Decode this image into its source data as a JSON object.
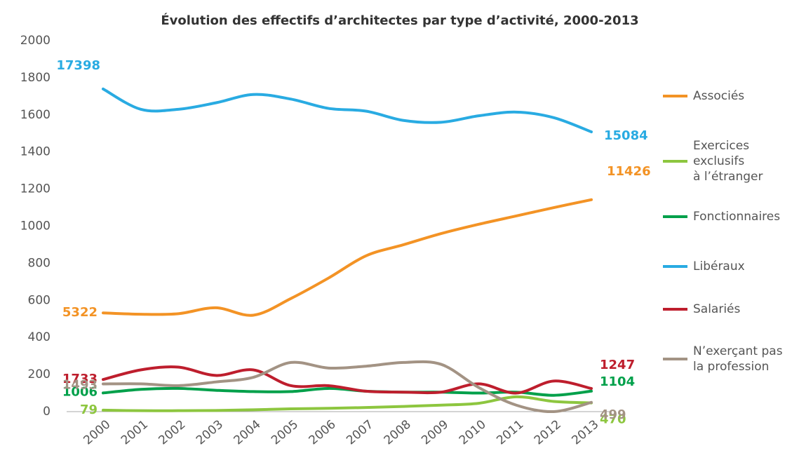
{
  "chart_data": {
    "type": "line",
    "title": "Évolution des effectifs d’architectes par type d’activité, 2000-2013",
    "categories": [
      "2000",
      "2001",
      "2002",
      "2003",
      "2004",
      "2005",
      "2006",
      "2007",
      "2008",
      "2009",
      "2010",
      "2011",
      "2012",
      "2013"
    ],
    "ylim": [
      0,
      2000
    ],
    "yticks": [
      0,
      200,
      400,
      600,
      800,
      1000,
      1200,
      1400,
      1600,
      1800,
      2000
    ],
    "series": [
      {
        "name": "Associés",
        "color": "#f39325",
        "values": [
          532.2,
          525,
          528,
          560,
          520,
          610,
          720,
          840,
          900,
          960,
          1010,
          1055,
          1100,
          1142.6
        ],
        "value_labels": [
          "5322",
          null,
          null,
          null,
          null,
          null,
          null,
          null,
          null,
          null,
          null,
          null,
          null,
          "11426"
        ]
      },
      {
        "name": "Exercices\nexclusifs\nà l’étranger",
        "color": "#8dc63f",
        "values": [
          7.9,
          5,
          5,
          6,
          10,
          15,
          18,
          22,
          28,
          35,
          45,
          80,
          55,
          47.0
        ],
        "value_labels": [
          "79",
          null,
          null,
          null,
          null,
          null,
          null,
          null,
          null,
          null,
          null,
          null,
          null,
          "470"
        ]
      },
      {
        "name": "Fonctionnaires",
        "color": "#00a04a",
        "values": [
          100.6,
          120,
          125,
          115,
          108,
          108,
          125,
          110,
          105,
          105,
          100,
          105,
          88,
          110.4
        ],
        "value_labels": [
          "1006",
          null,
          null,
          null,
          null,
          null,
          null,
          null,
          null,
          null,
          null,
          null,
          null,
          "1104"
        ]
      },
      {
        "name": "Libéraux",
        "color": "#29abe2",
        "values": [
          1739.8,
          1630,
          1630,
          1665,
          1710,
          1685,
          1635,
          1620,
          1570,
          1560,
          1595,
          1615,
          1585,
          1508.4
        ],
        "value_labels": [
          "17398",
          null,
          null,
          null,
          null,
          null,
          null,
          null,
          null,
          null,
          null,
          null,
          null,
          "15084"
        ]
      },
      {
        "name": "Salariés",
        "color": "#be1e2d",
        "values": [
          173.3,
          225,
          240,
          195,
          225,
          140,
          140,
          110,
          105,
          105,
          150,
          100,
          165,
          124.7
        ],
        "value_labels": [
          "1733",
          null,
          null,
          null,
          null,
          null,
          null,
          null,
          null,
          null,
          null,
          null,
          null,
          "1247"
        ]
      },
      {
        "name": "N’exerçant pas\nla profession",
        "color": "#a39384",
        "values": [
          149.3,
          150,
          140,
          160,
          185,
          265,
          235,
          245,
          265,
          255,
          130,
          35,
          0,
          49.9
        ],
        "value_labels": [
          "1493",
          null,
          null,
          null,
          null,
          null,
          null,
          null,
          null,
          null,
          null,
          null,
          null,
          "499"
        ]
      }
    ]
  }
}
